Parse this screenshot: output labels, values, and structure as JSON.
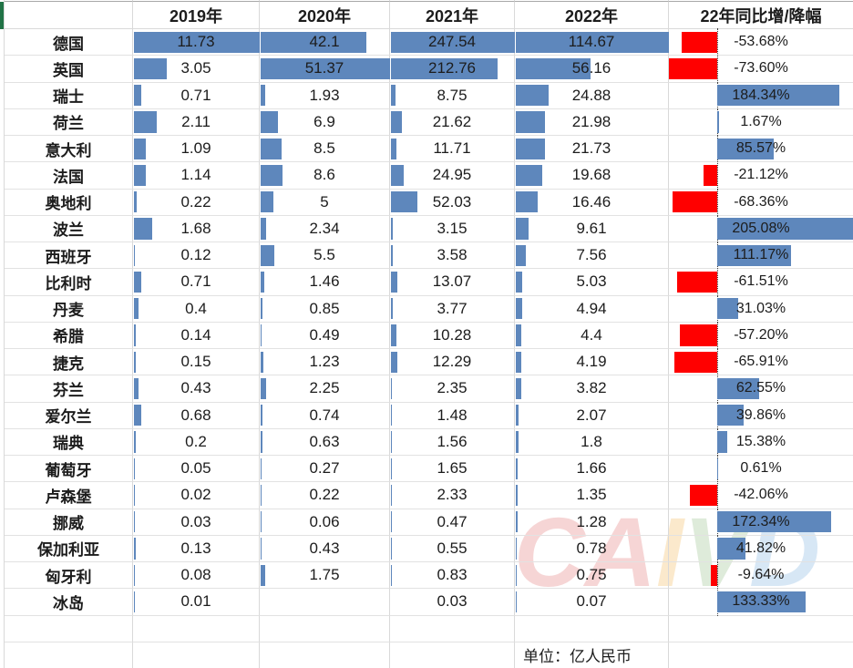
{
  "sheet": {
    "columns": [
      {
        "key": "country",
        "label": ""
      },
      {
        "key": "y2019",
        "label": "2019年",
        "max": 11.73
      },
      {
        "key": "y2020",
        "label": "2020年",
        "max": 51.37
      },
      {
        "key": "y2021",
        "label": "2021年",
        "max": 247.54
      },
      {
        "key": "y2022",
        "label": "2022年",
        "max": 114.67
      },
      {
        "key": "pct",
        "label": "22年同比增/降幅"
      }
    ],
    "rows": [
      {
        "country": "德国",
        "y2019": "11.73",
        "y2020": "42.1",
        "y2021": "247.54",
        "y2022": "114.67",
        "pct": "-53.68%",
        "pct_value": -53.68
      },
      {
        "country": "英国",
        "y2019": "3.05",
        "y2020": "51.37",
        "y2021": "212.76",
        "y2022": "56.16",
        "pct": "-73.60%",
        "pct_value": -73.6
      },
      {
        "country": "瑞士",
        "y2019": "0.71",
        "y2020": "1.93",
        "y2021": "8.75",
        "y2022": "24.88",
        "pct": "184.34%",
        "pct_value": 184.34
      },
      {
        "country": "荷兰",
        "y2019": "2.11",
        "y2020": "6.9",
        "y2021": "21.62",
        "y2022": "21.98",
        "pct": "1.67%",
        "pct_value": 1.67
      },
      {
        "country": "意大利",
        "y2019": "1.09",
        "y2020": "8.5",
        "y2021": "11.71",
        "y2022": "21.73",
        "pct": "85.57%",
        "pct_value": 85.57
      },
      {
        "country": "法国",
        "y2019": "1.14",
        "y2020": "8.6",
        "y2021": "24.95",
        "y2022": "19.68",
        "pct": "-21.12%",
        "pct_value": -21.12
      },
      {
        "country": "奥地利",
        "y2019": "0.22",
        "y2020": "5",
        "y2021": "52.03",
        "y2022": "16.46",
        "pct": "-68.36%",
        "pct_value": -68.36
      },
      {
        "country": "波兰",
        "y2019": "1.68",
        "y2020": "2.34",
        "y2021": "3.15",
        "y2022": "9.61",
        "pct": "205.08%",
        "pct_value": 205.08
      },
      {
        "country": "西班牙",
        "y2019": "0.12",
        "y2020": "5.5",
        "y2021": "3.58",
        "y2022": "7.56",
        "pct": "111.17%",
        "pct_value": 111.17
      },
      {
        "country": "比利时",
        "y2019": "0.71",
        "y2020": "1.46",
        "y2021": "13.07",
        "y2022": "5.03",
        "pct": "-61.51%",
        "pct_value": -61.51
      },
      {
        "country": "丹麦",
        "y2019": "0.4",
        "y2020": "0.85",
        "y2021": "3.77",
        "y2022": "4.94",
        "pct": "31.03%",
        "pct_value": 31.03
      },
      {
        "country": "希腊",
        "y2019": "0.14",
        "y2020": "0.49",
        "y2021": "10.28",
        "y2022": "4.4",
        "pct": "-57.20%",
        "pct_value": -57.2
      },
      {
        "country": "捷克",
        "y2019": "0.15",
        "y2020": "1.23",
        "y2021": "12.29",
        "y2022": "4.19",
        "pct": "-65.91%",
        "pct_value": -65.91
      },
      {
        "country": "芬兰",
        "y2019": "0.43",
        "y2020": "2.25",
        "y2021": "2.35",
        "y2022": "3.82",
        "pct": "62.55%",
        "pct_value": 62.55
      },
      {
        "country": "爱尔兰",
        "y2019": "0.68",
        "y2020": "0.74",
        "y2021": "1.48",
        "y2022": "2.07",
        "pct": "39.86%",
        "pct_value": 39.86
      },
      {
        "country": "瑞典",
        "y2019": "0.2",
        "y2020": "0.63",
        "y2021": "1.56",
        "y2022": "1.8",
        "pct": "15.38%",
        "pct_value": 15.38
      },
      {
        "country": "葡萄牙",
        "y2019": "0.05",
        "y2020": "0.27",
        "y2021": "1.65",
        "y2022": "1.66",
        "pct": "0.61%",
        "pct_value": 0.61
      },
      {
        "country": "卢森堡",
        "y2019": "0.02",
        "y2020": "0.22",
        "y2021": "2.33",
        "y2022": "1.35",
        "pct": "-42.06%",
        "pct_value": -42.06
      },
      {
        "country": "挪威",
        "y2019": "0.03",
        "y2020": "0.06",
        "y2021": "0.47",
        "y2022": "1.28",
        "pct": "172.34%",
        "pct_value": 172.34
      },
      {
        "country": "保加利亚",
        "y2019": "0.13",
        "y2020": "0.43",
        "y2021": "0.55",
        "y2022": "0.78",
        "pct": "41.82%",
        "pct_value": 41.82
      },
      {
        "country": "匈牙利",
        "y2019": "0.08",
        "y2020": "1.75",
        "y2021": "0.83",
        "y2022": "0.75",
        "pct": "-9.64%",
        "pct_value": -9.64
      },
      {
        "country": "冰岛",
        "y2019": "0.01",
        "y2020": "",
        "y2021": "0.03",
        "y2022": "0.07",
        "pct": "133.33%",
        "pct_value": 133.33
      }
    ],
    "unit_note": "单位：亿人民币",
    "colors": {
      "bar_blue": "#5E87BC",
      "bar_red": "#FF0000",
      "grid": "#D9D9D9",
      "accent_green": "#217346"
    },
    "watermark": {
      "letters": [
        {
          "ch": "C",
          "color": "#df6a6a"
        },
        {
          "ch": "A",
          "color": "#df6a6a"
        },
        {
          "ch": "I",
          "color": "#f2b24a"
        },
        {
          "ch": "V",
          "color": "#8ab87d"
        },
        {
          "ch": "D",
          "color": "#74abdd"
        }
      ]
    }
  }
}
